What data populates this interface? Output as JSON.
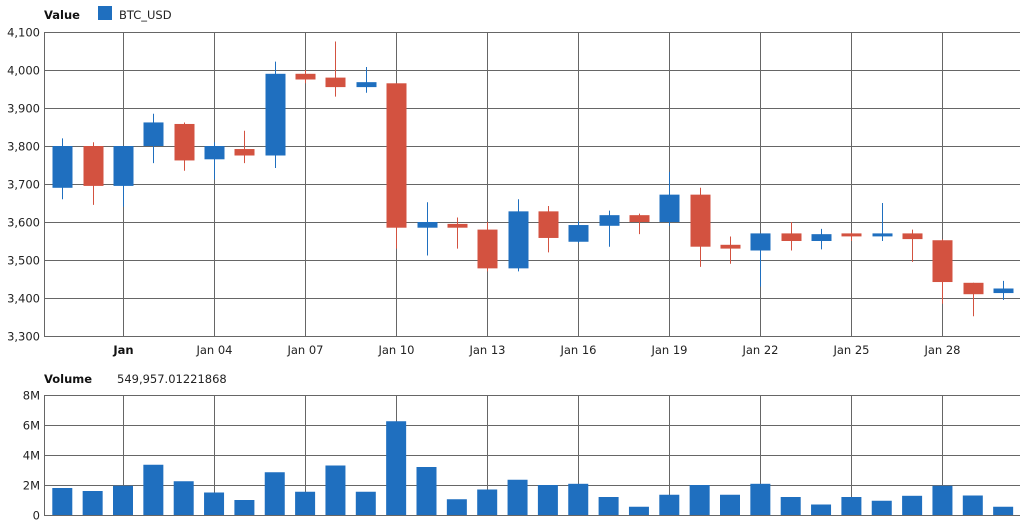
{
  "header": {
    "value_label": "Value",
    "legend_label": "BTC_USD",
    "volume_label": "Volume",
    "volume_value": "549,957.01221868"
  },
  "colors": {
    "up": "#1f6fbf",
    "down": "#d35240",
    "volume": "#1f6fbf",
    "grid": "#666666"
  },
  "chart_data": [
    {
      "type": "candlestick",
      "title": "Value",
      "legend": [
        "BTC_USD"
      ],
      "ylim": [
        3300,
        4100
      ],
      "y_ticks": [
        3300,
        3400,
        3500,
        3600,
        3700,
        3800,
        3900,
        4000,
        4100
      ],
      "y_tick_labels": [
        "3,300",
        "3,400",
        "3,500",
        "3,600",
        "3,700",
        "3,800",
        "3,900",
        "4,000",
        "4,100"
      ],
      "x_tick_labels": [
        "Jan",
        "Jan 04",
        "Jan 07",
        "Jan 10",
        "Jan 13",
        "Jan 16",
        "Jan 19",
        "Jan 22",
        "Jan 25",
        "Jan 28"
      ],
      "x_tick_days": [
        1,
        4,
        7,
        10,
        13,
        16,
        19,
        22,
        25,
        28
      ],
      "grid": true,
      "series": [
        {
          "name": "BTC_USD",
          "points": [
            {
              "day": -1,
              "open": 3690,
              "high": 3820,
              "low": 3660,
              "close": 3800
            },
            {
              "day": 0,
              "open": 3800,
              "high": 3810,
              "low": 3645,
              "close": 3695
            },
            {
              "day": 1,
              "open": 3695,
              "high": 3800,
              "low": 3640,
              "close": 3800
            },
            {
              "day": 2,
              "open": 3800,
              "high": 3885,
              "low": 3755,
              "close": 3862
            },
            {
              "day": 3,
              "open": 3858,
              "high": 3862,
              "low": 3735,
              "close": 3762
            },
            {
              "day": 4,
              "open": 3765,
              "high": 3810,
              "low": 3712,
              "close": 3800
            },
            {
              "day": 5,
              "open": 3792,
              "high": 3840,
              "low": 3755,
              "close": 3775
            },
            {
              "day": 6,
              "open": 3775,
              "high": 4022,
              "low": 3742,
              "close": 3990
            },
            {
              "day": 7,
              "open": 3990,
              "high": 4000,
              "low": 3965,
              "close": 3975
            },
            {
              "day": 8,
              "open": 3980,
              "high": 4075,
              "low": 3930,
              "close": 3955
            },
            {
              "day": 9,
              "open": 3955,
              "high": 4008,
              "low": 3940,
              "close": 3968
            },
            {
              "day": 10,
              "open": 3965,
              "high": 3965,
              "low": 3530,
              "close": 3585
            },
            {
              "day": 11,
              "open": 3585,
              "high": 3652,
              "low": 3512,
              "close": 3600
            },
            {
              "day": 12,
              "open": 3595,
              "high": 3612,
              "low": 3530,
              "close": 3585
            },
            {
              "day": 13,
              "open": 3580,
              "high": 3600,
              "low": 3470,
              "close": 3478
            },
            {
              "day": 14,
              "open": 3478,
              "high": 3660,
              "low": 3470,
              "close": 3628
            },
            {
              "day": 15,
              "open": 3628,
              "high": 3642,
              "low": 3520,
              "close": 3558
            },
            {
              "day": 16,
              "open": 3548,
              "high": 3602,
              "low": 3545,
              "close": 3592
            },
            {
              "day": 17,
              "open": 3590,
              "high": 3630,
              "low": 3535,
              "close": 3618
            },
            {
              "day": 18,
              "open": 3618,
              "high": 3622,
              "low": 3568,
              "close": 3600
            },
            {
              "day": 19,
              "open": 3600,
              "high": 3732,
              "low": 3590,
              "close": 3672
            },
            {
              "day": 20,
              "open": 3672,
              "high": 3690,
              "low": 3482,
              "close": 3535
            },
            {
              "day": 21,
              "open": 3540,
              "high": 3562,
              "low": 3490,
              "close": 3530
            },
            {
              "day": 22,
              "open": 3525,
              "high": 3570,
              "low": 3430,
              "close": 3570
            },
            {
              "day": 23,
              "open": 3570,
              "high": 3600,
              "low": 3525,
              "close": 3550
            },
            {
              "day": 24,
              "open": 3550,
              "high": 3582,
              "low": 3528,
              "close": 3568
            },
            {
              "day": 25,
              "open": 3570,
              "high": 3572,
              "low": 3550,
              "close": 3565
            },
            {
              "day": 26,
              "open": 3570,
              "high": 3650,
              "low": 3550,
              "close": 3570
            },
            {
              "day": 27,
              "open": 3570,
              "high": 3580,
              "low": 3495,
              "close": 3555
            },
            {
              "day": 28,
              "open": 3552,
              "high": 3555,
              "low": 3385,
              "close": 3442
            },
            {
              "day": 29,
              "open": 3440,
              "high": 3440,
              "low": 3352,
              "close": 3410
            },
            {
              "day": 30,
              "open": 3413,
              "high": 3445,
              "low": 3395,
              "close": 3425
            }
          ]
        }
      ]
    },
    {
      "type": "bar",
      "title": "Volume",
      "ylim": [
        0,
        8000000
      ],
      "y_ticks": [
        0,
        2000000,
        4000000,
        6000000,
        8000000
      ],
      "y_tick_labels": [
        "0",
        "2M",
        "4M",
        "6M",
        "8M"
      ],
      "grid": true,
      "series": [
        {
          "name": "Volume",
          "values": [
            {
              "day": -1,
              "value": 1800000
            },
            {
              "day": 0,
              "value": 1600000
            },
            {
              "day": 1,
              "value": 1950000
            },
            {
              "day": 2,
              "value": 3350000
            },
            {
              "day": 3,
              "value": 2250000
            },
            {
              "day": 4,
              "value": 1500000
            },
            {
              "day": 5,
              "value": 1000000
            },
            {
              "day": 6,
              "value": 2850000
            },
            {
              "day": 7,
              "value": 1550000
            },
            {
              "day": 8,
              "value": 3300000
            },
            {
              "day": 9,
              "value": 1550000
            },
            {
              "day": 10,
              "value": 6250000
            },
            {
              "day": 11,
              "value": 3200000
            },
            {
              "day": 12,
              "value": 1050000
            },
            {
              "day": 13,
              "value": 1700000
            },
            {
              "day": 14,
              "value": 2350000
            },
            {
              "day": 15,
              "value": 2000000
            },
            {
              "day": 16,
              "value": 2080000
            },
            {
              "day": 17,
              "value": 1200000
            },
            {
              "day": 18,
              "value": 550000
            },
            {
              "day": 19,
              "value": 1350000
            },
            {
              "day": 20,
              "value": 2000000
            },
            {
              "day": 21,
              "value": 1350000
            },
            {
              "day": 22,
              "value": 2080000
            },
            {
              "day": 23,
              "value": 1200000
            },
            {
              "day": 24,
              "value": 700000
            },
            {
              "day": 25,
              "value": 1200000
            },
            {
              "day": 26,
              "value": 950000
            },
            {
              "day": 27,
              "value": 1280000
            },
            {
              "day": 28,
              "value": 1950000
            },
            {
              "day": 29,
              "value": 1300000
            },
            {
              "day": 30,
              "value": 550000
            }
          ]
        }
      ]
    }
  ]
}
